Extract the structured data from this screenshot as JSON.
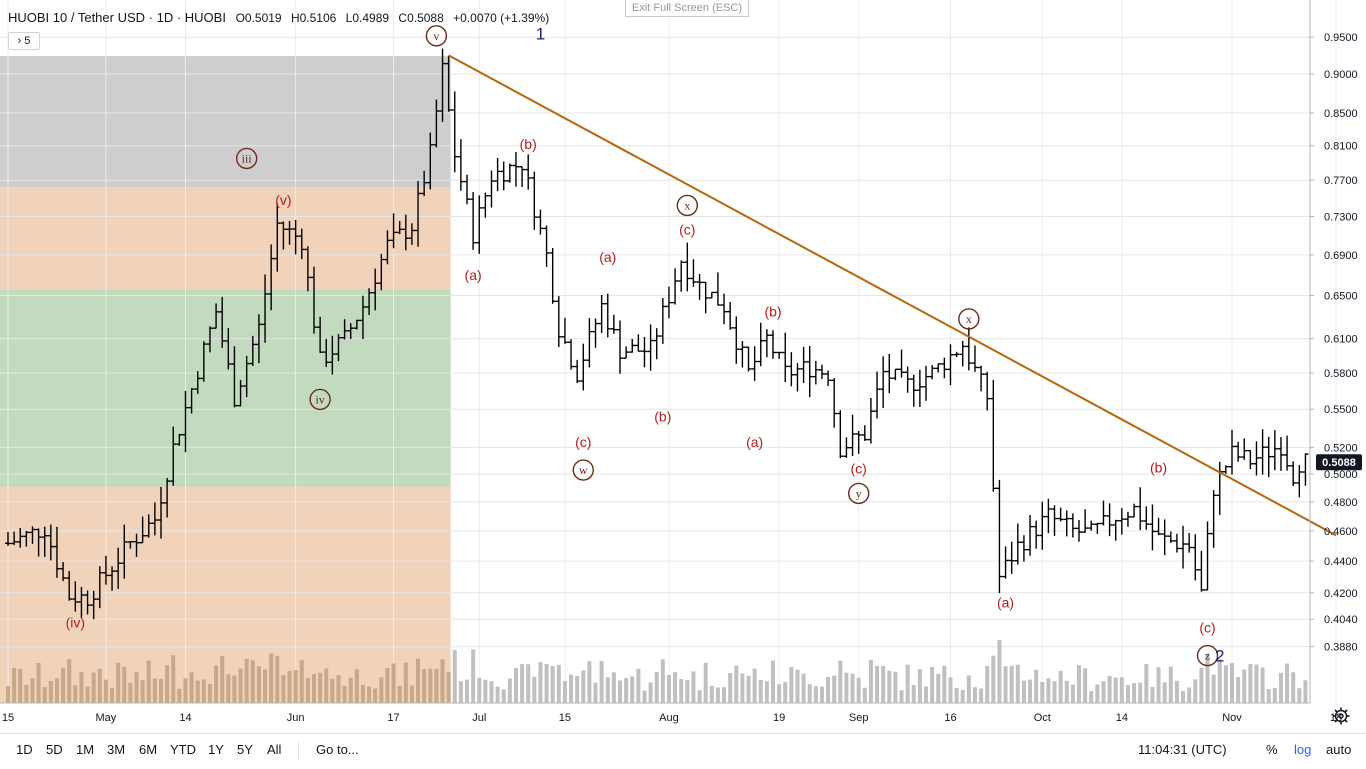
{
  "header": {
    "symbol": "HUOBI 10 / Tether USD · 1D · HUOBI",
    "open": "O0.5019",
    "high": "H0.5106",
    "low": "L0.4989",
    "close": "C0.5088",
    "change": "+0.0070 (+1.39%)"
  },
  "exit_fullscreen": "Exit Full Screen (ESC)",
  "collapsed_badge": "› 5",
  "toolbar": {
    "ranges": [
      "1D",
      "5D",
      "1M",
      "3M",
      "6M",
      "YTD",
      "1Y",
      "5Y",
      "All"
    ],
    "goto": "Go to...",
    "clock": "11:04:31 (UTC)",
    "percent": "%",
    "log": "log",
    "auto": "auto"
  },
  "colors": {
    "bars": "#000000",
    "trendline": "#b8650e",
    "wave_label": "#b71c1c",
    "circle_label": "#6d2c1a",
    "volume_past": "#c8a88a",
    "volume_recent": "#c0c0c0",
    "zone_gray": "#c6c6c6",
    "zone_orange": "#efcbb0",
    "zone_green": "#b7d3b1",
    "link_blue": "#2962ff"
  },
  "chart_data": {
    "type": "ohlc",
    "y_axis": {
      "ticks": [
        "0.3880",
        "0.4040",
        "0.4200",
        "0.4400",
        "0.4600",
        "0.4800",
        "0.5000",
        "0.5200",
        "0.5500",
        "0.5800",
        "0.6100",
        "0.6500",
        "0.6900",
        "0.7300",
        "0.7700",
        "0.8100",
        "0.8500",
        "0.9000",
        "0.9500"
      ],
      "last_price": "0.5088",
      "scale": "log"
    },
    "x_axis": {
      "ticks": [
        "15",
        "May",
        "14",
        "Jun",
        "17",
        "Jul",
        "15",
        "Aug",
        "19",
        "Sep",
        "16",
        "Oct",
        "14",
        "Nov",
        "18"
      ],
      "start": "2019-04-15"
    },
    "zones": [
      {
        "color": "gray",
        "from": 0.762,
        "to": 0.924
      },
      {
        "color": "orange",
        "from": 0.656,
        "to": 0.762
      },
      {
        "color": "green",
        "from": 0.491,
        "to": 0.656
      },
      {
        "color": "orange",
        "from": 0.3,
        "to": 0.491
      }
    ],
    "trendline": [
      {
        "date": "2019-06-26",
        "price": 0.925
      },
      {
        "date": "2019-11-18",
        "price": 0.457
      }
    ],
    "wave_labels": [
      {
        "text": "(iv)",
        "date": "2019-04-26",
        "price": 0.402,
        "style": "red"
      },
      {
        "text": "iii",
        "date": "2019-05-24",
        "price": 0.795,
        "style": "circle"
      },
      {
        "text": "(v)",
        "date": "2019-05-30",
        "price": 0.748,
        "style": "red"
      },
      {
        "text": "iv",
        "date": "2019-06-05",
        "price": 0.558,
        "style": "circle"
      },
      {
        "text": "v",
        "date": "2019-06-24",
        "price": 0.952,
        "style": "circle"
      },
      {
        "text": "1",
        "date": "2019-07-11",
        "price": 0.955,
        "style": "blue"
      },
      {
        "text": "(a)",
        "date": "2019-06-30",
        "price": 0.67,
        "style": "red"
      },
      {
        "text": "(b)",
        "date": "2019-07-09",
        "price": 0.812,
        "style": "red"
      },
      {
        "text": "(c)",
        "date": "2019-07-18",
        "price": 0.524,
        "style": "red"
      },
      {
        "text": "w",
        "date": "2019-07-18",
        "price": 0.503,
        "style": "circle"
      },
      {
        "text": "(a)",
        "date": "2019-07-22",
        "price": 0.688,
        "style": "red"
      },
      {
        "text": "(b)",
        "date": "2019-07-31",
        "price": 0.544,
        "style": "red"
      },
      {
        "text": "(c)",
        "date": "2019-08-04",
        "price": 0.716,
        "style": "red"
      },
      {
        "text": "x",
        "date": "2019-08-04",
        "price": 0.742,
        "style": "circle"
      },
      {
        "text": "(a)",
        "date": "2019-08-15",
        "price": 0.524,
        "style": "red"
      },
      {
        "text": "(b)",
        "date": "2019-08-18",
        "price": 0.635,
        "style": "red"
      },
      {
        "text": "(c)",
        "date": "2019-09-01",
        "price": 0.504,
        "style": "red"
      },
      {
        "text": "y",
        "date": "2019-09-01",
        "price": 0.486,
        "style": "circle"
      },
      {
        "text": "x",
        "date": "2019-09-19",
        "price": 0.628,
        "style": "circle"
      },
      {
        "text": "(a)",
        "date": "2019-09-25",
        "price": 0.414,
        "style": "red"
      },
      {
        "text": "(b)",
        "date": "2019-10-20",
        "price": 0.505,
        "style": "red"
      },
      {
        "text": "(c)",
        "date": "2019-10-28",
        "price": 0.399,
        "style": "red"
      },
      {
        "text": "z",
        "date": "2019-10-28",
        "price": 0.383,
        "style": "circle"
      },
      {
        "text": "2",
        "date": "2019-10-30",
        "price": 0.383,
        "style": "blue"
      }
    ],
    "anchors": [
      [
        "2019-04-15",
        0.45
      ],
      [
        "2019-04-22",
        0.462
      ],
      [
        "2019-04-26",
        0.418
      ],
      [
        "2019-04-29",
        0.417
      ],
      [
        "2019-05-06",
        0.452
      ],
      [
        "2019-05-10",
        0.468
      ],
      [
        "2019-05-13",
        0.52
      ],
      [
        "2019-05-18",
        0.6
      ],
      [
        "2019-05-20",
        0.635
      ],
      [
        "2019-05-23",
        0.56
      ],
      [
        "2019-05-27",
        0.62
      ],
      [
        "2019-05-30",
        0.722
      ],
      [
        "2019-06-03",
        0.705
      ],
      [
        "2019-06-06",
        0.59
      ],
      [
        "2019-06-10",
        0.61
      ],
      [
        "2019-06-13",
        0.64
      ],
      [
        "2019-06-17",
        0.7
      ],
      [
        "2019-06-21",
        0.72
      ],
      [
        "2019-06-24",
        0.8
      ],
      [
        "2019-06-26",
        0.905
      ],
      [
        "2019-06-28",
        0.8
      ],
      [
        "2019-07-01",
        0.712
      ],
      [
        "2019-07-04",
        0.775
      ],
      [
        "2019-07-09",
        0.79
      ],
      [
        "2019-07-11",
        0.74
      ],
      [
        "2019-07-13",
        0.69
      ],
      [
        "2019-07-15",
        0.62
      ],
      [
        "2019-07-18",
        0.58
      ],
      [
        "2019-07-22",
        0.64
      ],
      [
        "2019-07-25",
        0.6
      ],
      [
        "2019-07-30",
        0.6
      ],
      [
        "2019-08-04",
        0.685
      ],
      [
        "2019-08-07",
        0.66
      ],
      [
        "2019-08-11",
        0.64
      ],
      [
        "2019-08-15",
        0.58
      ],
      [
        "2019-08-18",
        0.61
      ],
      [
        "2019-08-21",
        0.58
      ],
      [
        "2019-08-25",
        0.585
      ],
      [
        "2019-08-28",
        0.58
      ],
      [
        "2019-08-30",
        0.52
      ],
      [
        "2019-09-03",
        0.53
      ],
      [
        "2019-09-06",
        0.58
      ],
      [
        "2019-09-10",
        0.57
      ],
      [
        "2019-09-14",
        0.58
      ],
      [
        "2019-09-19",
        0.605
      ],
      [
        "2019-09-23",
        0.56
      ],
      [
        "2019-09-25",
        0.43
      ],
      [
        "2019-09-28",
        0.45
      ],
      [
        "2019-10-03",
        0.47
      ],
      [
        "2019-10-07",
        0.46
      ],
      [
        "2019-10-10",
        0.458
      ],
      [
        "2019-10-14",
        0.47
      ],
      [
        "2019-10-17",
        0.475
      ],
      [
        "2019-10-21",
        0.455
      ],
      [
        "2019-10-24",
        0.452
      ],
      [
        "2019-10-26",
        0.45
      ],
      [
        "2019-10-28",
        0.42
      ],
      [
        "2019-10-30",
        0.49
      ],
      [
        "2019-11-02",
        0.515
      ],
      [
        "2019-11-05",
        0.51
      ],
      [
        "2019-11-10",
        0.522
      ],
      [
        "2019-11-12",
        0.5
      ],
      [
        "2019-11-13",
        0.509
      ]
    ]
  }
}
